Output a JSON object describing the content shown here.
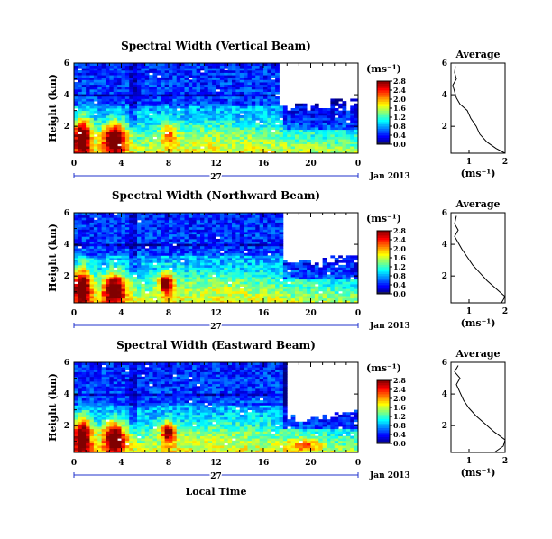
{
  "figure": {
    "xlabel": "Local Time",
    "date_label": "Jan 2013",
    "day_label": "27",
    "colorbar_unit": "(ms⁻¹)",
    "average_title": "Average",
    "average_xlabel": "(ms⁻¹)"
  },
  "chart_data": [
    {
      "type": "heatmap",
      "title": "Spectral Width (Vertical Beam)",
      "ylabel": "Height (km)",
      "xlabel": "",
      "x_ticks": [
        "0",
        "4",
        "8",
        "12",
        "16",
        "20",
        "0"
      ],
      "xlim": [
        0,
        24
      ],
      "y_ticks": [
        "2",
        "4",
        "6"
      ],
      "ylim": [
        0.3,
        6.0
      ],
      "colorbar_ticks": [
        "0.0",
        "0.4",
        "0.8",
        "1.2",
        "1.6",
        "2.0",
        "2.4",
        "2.8"
      ],
      "clim": [
        0,
        2.8
      ],
      "no_data_region": {
        "start_hour": 17.5,
        "end_hour": 24,
        "min_km": 3.2,
        "max_km": 6.0
      },
      "average_profile": {
        "title": "Average",
        "xlim": [
          0.5,
          2.0
        ],
        "x_ticks": [
          "1",
          "2"
        ],
        "y_ticks": [
          "2",
          "4",
          "6"
        ],
        "points": [
          {
            "h": 0.3,
            "w": 2.0
          },
          {
            "h": 0.6,
            "w": 1.75
          },
          {
            "h": 1.0,
            "w": 1.5
          },
          {
            "h": 1.5,
            "w": 1.3
          },
          {
            "h": 2.0,
            "w": 1.2
          },
          {
            "h": 2.5,
            "w": 1.05
          },
          {
            "h": 3.0,
            "w": 0.95
          },
          {
            "h": 3.4,
            "w": 0.75
          },
          {
            "h": 3.8,
            "w": 0.65
          },
          {
            "h": 4.2,
            "w": 0.6
          },
          {
            "h": 4.6,
            "w": 0.55
          },
          {
            "h": 5.0,
            "w": 0.65
          },
          {
            "h": 5.4,
            "w": 0.6
          },
          {
            "h": 5.8,
            "w": 0.62
          }
        ]
      }
    },
    {
      "type": "heatmap",
      "title": "Spectral Width (Northward Beam)",
      "ylabel": "Height (km)",
      "xlabel": "",
      "x_ticks": [
        "0",
        "4",
        "8",
        "12",
        "16",
        "20",
        "0"
      ],
      "xlim": [
        0,
        24
      ],
      "y_ticks": [
        "2",
        "4",
        "6"
      ],
      "ylim": [
        0.3,
        6.0
      ],
      "colorbar_ticks": [
        "0.0",
        "0.4",
        "0.8",
        "1.2",
        "1.6",
        "2.0",
        "2.4",
        "2.8"
      ],
      "clim": [
        0,
        2.8
      ],
      "no_data_region": {
        "start_hour": 17.8,
        "end_hour": 24,
        "min_km": 2.8,
        "max_km": 6.0
      },
      "average_profile": {
        "title": "Average",
        "xlim": [
          0.5,
          2.0
        ],
        "x_ticks": [
          "1",
          "2"
        ],
        "y_ticks": [
          "2",
          "4",
          "6"
        ],
        "points": [
          {
            "h": 0.3,
            "w": 1.9
          },
          {
            "h": 0.7,
            "w": 2.0
          },
          {
            "h": 1.2,
            "w": 1.75
          },
          {
            "h": 1.7,
            "w": 1.5
          },
          {
            "h": 2.2,
            "w": 1.3
          },
          {
            "h": 2.7,
            "w": 1.1
          },
          {
            "h": 3.2,
            "w": 0.95
          },
          {
            "h": 3.7,
            "w": 0.8
          },
          {
            "h": 4.1,
            "w": 0.7
          },
          {
            "h": 4.5,
            "w": 0.6
          },
          {
            "h": 4.9,
            "w": 0.7
          },
          {
            "h": 5.3,
            "w": 0.6
          },
          {
            "h": 5.8,
            "w": 0.65
          }
        ]
      }
    },
    {
      "type": "heatmap",
      "title": "Spectral Width (Eastward Beam)",
      "ylabel": "Height (km)",
      "xlabel": "Local Time",
      "x_ticks": [
        "0",
        "4",
        "8",
        "12",
        "16",
        "20",
        "0"
      ],
      "xlim": [
        0,
        24
      ],
      "y_ticks": [
        "2",
        "4",
        "6"
      ],
      "ylim": [
        0.3,
        6.0
      ],
      "colorbar_ticks": [
        "0.0",
        "0.4",
        "0.8",
        "1.2",
        "1.6",
        "2.0",
        "2.4",
        "2.8"
      ],
      "clim": [
        0,
        2.8
      ],
      "no_data_region": {
        "start_hour": 18.0,
        "end_hour": 24,
        "min_km": 2.5,
        "max_km": 6.0
      },
      "average_profile": {
        "title": "Average",
        "xlim": [
          0.5,
          2.0
        ],
        "x_ticks": [
          "1",
          "2"
        ],
        "y_ticks": [
          "2",
          "4",
          "6"
        ],
        "points": [
          {
            "h": 0.3,
            "w": 1.7
          },
          {
            "h": 0.7,
            "w": 1.95
          },
          {
            "h": 1.1,
            "w": 2.0
          },
          {
            "h": 1.6,
            "w": 1.7
          },
          {
            "h": 2.1,
            "w": 1.45
          },
          {
            "h": 2.6,
            "w": 1.2
          },
          {
            "h": 3.1,
            "w": 1.0
          },
          {
            "h": 3.6,
            "w": 0.85
          },
          {
            "h": 4.1,
            "w": 0.75
          },
          {
            "h": 4.6,
            "w": 0.65
          },
          {
            "h": 5.0,
            "w": 0.75
          },
          {
            "h": 5.4,
            "w": 0.6
          },
          {
            "h": 5.8,
            "w": 0.7
          }
        ]
      }
    }
  ]
}
